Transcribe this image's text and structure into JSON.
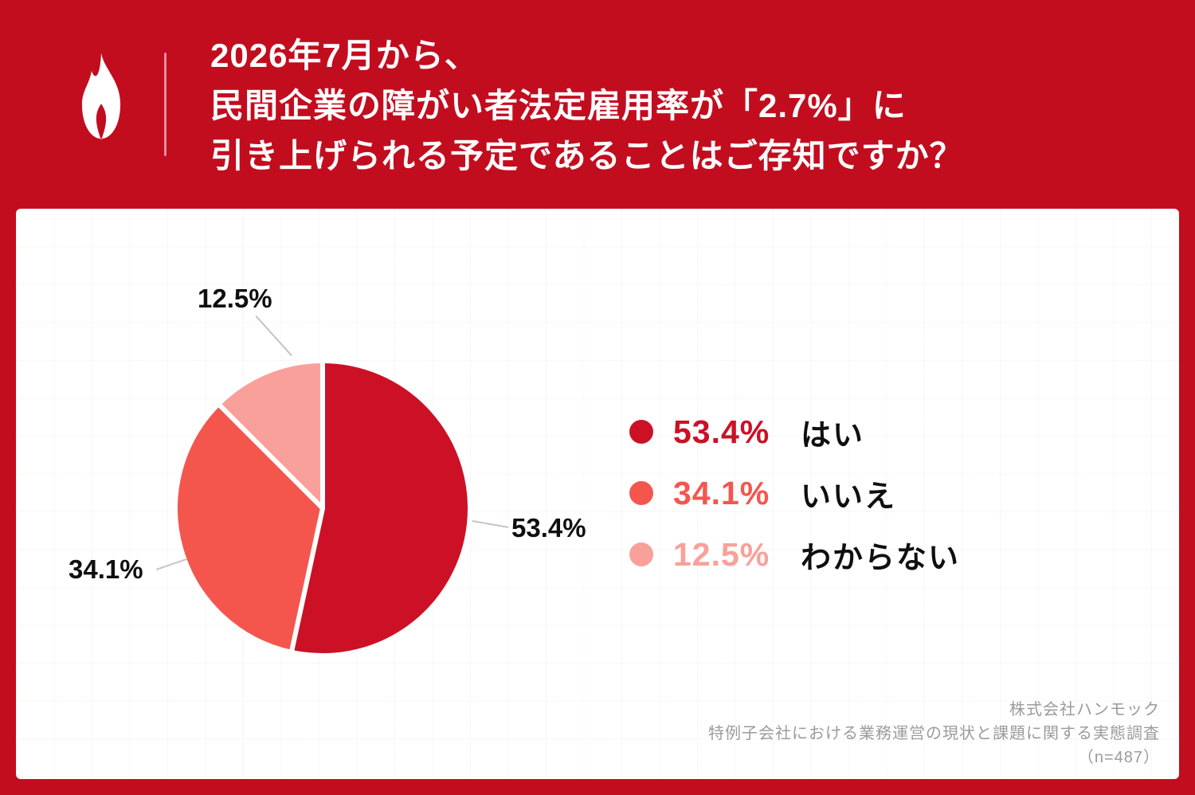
{
  "header": {
    "title_lines": [
      "2026年7月から、",
      "民間企業の障がい者法定雇用率が「2.7%」に",
      "引き上げられる予定であることはご存知ですか？"
    ]
  },
  "colors": {
    "background_red": "#c20d1f",
    "accent_red": "#cc1126",
    "tomato": "#f4564e",
    "pink": "#f9a09a",
    "panel_white": "#ffffff",
    "footer_gray": "#9b9b9b"
  },
  "chart_data": {
    "type": "pie",
    "title": "2026年7月から、民間企業の障がい者法定雇用率が「2.7%」に引き上げられる予定であることはご存知ですか？",
    "categories": [
      "はい",
      "いいえ",
      "わからない"
    ],
    "values": [
      53.4,
      34.1,
      12.5
    ],
    "unit": "%",
    "colors": [
      "#cc1126",
      "#f4564e",
      "#f9a09a"
    ],
    "start_angle_deg": -90,
    "direction": "clockwise",
    "legend_position": "right",
    "callouts": {
      "yes": "53.4%",
      "no": "34.1%",
      "unknown": "12.5%"
    }
  },
  "legend": {
    "items": [
      {
        "percent": "53.4%",
        "label": "はい",
        "color": "#cc1126"
      },
      {
        "percent": "34.1%",
        "label": "いいえ",
        "color": "#f4564e"
      },
      {
        "percent": "12.5%",
        "label": "わからない",
        "color": "#f9a09a"
      }
    ]
  },
  "footer": {
    "company": "株式会社ハンモック",
    "survey": "特例子会社における業務運営の現状と課題に関する実態調査",
    "sample_size": "（n=487）"
  }
}
